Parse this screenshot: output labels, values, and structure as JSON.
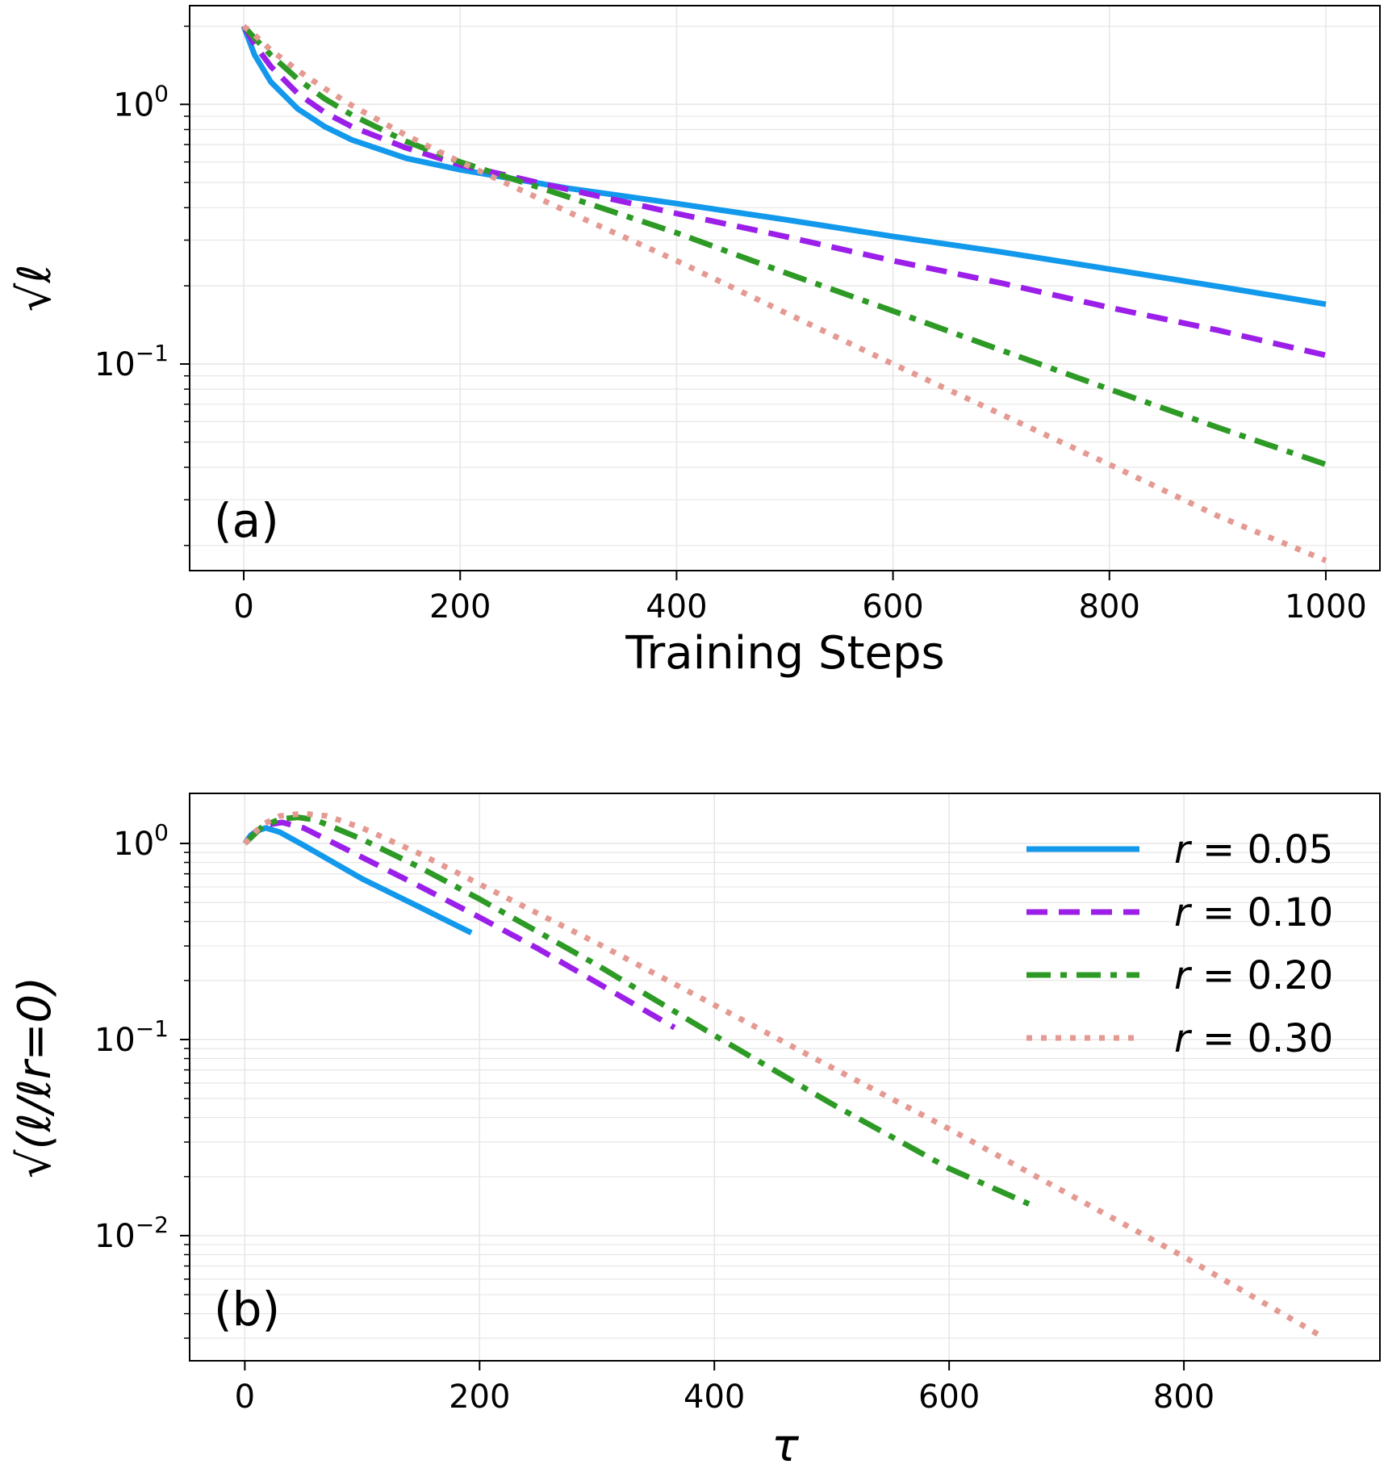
{
  "colors": {
    "r005": "#1399ec",
    "r010": "#9b1fe8",
    "r020": "#2d9a25",
    "r030": "#e49a92",
    "grid": "#e6e6e6",
    "axis": "#000000"
  },
  "chart_data": [
    {
      "id": "a",
      "type": "line",
      "yscale": "log",
      "panel_label": "(a)",
      "xlabel": "Training Steps",
      "ylabel": "√ℓ",
      "xlim": [
        -50,
        1050
      ],
      "ylim": [
        0.016,
        2.4
      ],
      "xticks": [
        0,
        200,
        400,
        600,
        800,
        1000
      ],
      "xtick_labels": [
        "0",
        "200",
        "400",
        "600",
        "800",
        "1000"
      ],
      "yticks": [
        {
          "value": 1,
          "base": "10",
          "exp": "0"
        },
        {
          "value": 0.1,
          "base": "10",
          "exp": "−1"
        }
      ],
      "grid": true,
      "series": [
        {
          "name": "r = 0.05",
          "key": "r005",
          "style": "solid",
          "x": [
            0,
            10,
            25,
            50,
            75,
            100,
            150,
            200,
            300,
            400,
            500,
            600,
            700,
            800,
            900,
            1000
          ],
          "y": [
            2.0,
            1.55,
            1.22,
            0.96,
            0.82,
            0.73,
            0.62,
            0.56,
            0.475,
            0.415,
            0.36,
            0.31,
            0.27,
            0.232,
            0.199,
            0.17
          ]
        },
        {
          "name": "r = 0.10",
          "key": "r010",
          "style": "dashed",
          "x": [
            0,
            10,
            25,
            50,
            75,
            100,
            150,
            200,
            300,
            400,
            500,
            600,
            700,
            800,
            900,
            1000
          ],
          "y": [
            2.0,
            1.7,
            1.4,
            1.1,
            0.93,
            0.82,
            0.68,
            0.585,
            0.47,
            0.38,
            0.31,
            0.25,
            0.205,
            0.165,
            0.135,
            0.108
          ]
        },
        {
          "name": "r = 0.20",
          "key": "r020",
          "style": "dashdot",
          "x": [
            0,
            10,
            25,
            50,
            75,
            100,
            150,
            200,
            300,
            400,
            500,
            600,
            700,
            800,
            900,
            1000
          ],
          "y": [
            2.0,
            1.8,
            1.55,
            1.25,
            1.05,
            0.91,
            0.72,
            0.6,
            0.44,
            0.32,
            0.225,
            0.16,
            0.113,
            0.08,
            0.057,
            0.041
          ]
        },
        {
          "name": "r = 0.30",
          "key": "r030",
          "style": "dotted",
          "x": [
            0,
            10,
            25,
            50,
            75,
            100,
            150,
            200,
            300,
            400,
            500,
            600,
            700,
            800,
            900,
            1000
          ],
          "y": [
            2.0,
            1.85,
            1.62,
            1.35,
            1.15,
            0.99,
            0.76,
            0.6,
            0.385,
            0.25,
            0.158,
            0.1,
            0.064,
            0.041,
            0.026,
            0.0175
          ]
        }
      ]
    },
    {
      "id": "b",
      "type": "line",
      "yscale": "log",
      "panel_label": "(b)",
      "xlabel": "τ",
      "ylabel": "√(ℓ/ℓr=0)",
      "xlim": [
        -47,
        967
      ],
      "ylim": [
        0.0023,
        1.8
      ],
      "xticks": [
        0,
        200,
        400,
        600,
        800
      ],
      "xtick_labels": [
        "0",
        "200",
        "400",
        "600",
        "800"
      ],
      "yticks": [
        {
          "value": 1,
          "base": "10",
          "exp": "0"
        },
        {
          "value": 0.1,
          "base": "10",
          "exp": "−1"
        },
        {
          "value": 0.01,
          "base": "10",
          "exp": "−2"
        }
      ],
      "grid": true,
      "legend": {
        "position": "top-right",
        "prefix": "r",
        "values": [
          "0.05",
          "0.10",
          "0.20",
          "0.30"
        ]
      },
      "series": [
        {
          "name": "r = 0.05",
          "key": "r005",
          "style": "solid",
          "x": [
            0,
            5,
            10,
            18,
            30,
            50,
            100,
            150,
            193
          ],
          "y": [
            1.0,
            1.1,
            1.16,
            1.2,
            1.14,
            0.98,
            0.66,
            0.47,
            0.35
          ]
        },
        {
          "name": "r = 0.10",
          "key": "r010",
          "style": "dashed",
          "x": [
            0,
            10,
            20,
            32,
            50,
            100,
            150,
            200,
            250,
            300,
            366
          ],
          "y": [
            1.0,
            1.15,
            1.25,
            1.28,
            1.2,
            0.85,
            0.6,
            0.42,
            0.29,
            0.195,
            0.115
          ]
        },
        {
          "name": "r = 0.20",
          "key": "r020",
          "style": "dashdot",
          "x": [
            0,
            15,
            30,
            45,
            60,
            100,
            150,
            200,
            300,
            400,
            500,
            600,
            668
          ],
          "y": [
            1.0,
            1.22,
            1.33,
            1.36,
            1.32,
            1.05,
            0.75,
            0.52,
            0.24,
            0.105,
            0.047,
            0.022,
            0.0145
          ]
        },
        {
          "name": "r = 0.30",
          "key": "r030",
          "style": "dotted",
          "x": [
            0,
            15,
            30,
            50,
            70,
            100,
            150,
            200,
            300,
            400,
            500,
            600,
            700,
            800,
            920
          ],
          "y": [
            1.0,
            1.25,
            1.38,
            1.42,
            1.38,
            1.2,
            0.88,
            0.62,
            0.31,
            0.15,
            0.072,
            0.035,
            0.0165,
            0.0078,
            0.003
          ]
        }
      ]
    }
  ]
}
